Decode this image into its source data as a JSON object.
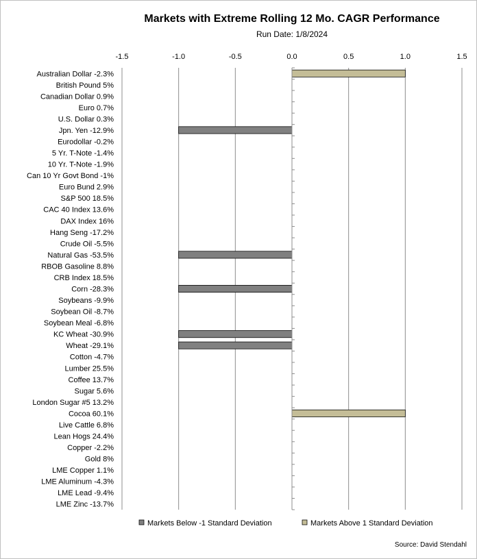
{
  "chart_data": {
    "type": "bar",
    "orientation": "horizontal",
    "title": "Markets with Extreme Rolling 12 Mo. CAGR Performance",
    "subtitle": "Run Date: 1/8/2024",
    "source": "Source: David Stendahl",
    "xlim": [
      -1.5,
      1.5
    ],
    "xticks": [
      "-1.5",
      "-1.0",
      "-0.5",
      "0.0",
      "0.5",
      "1.0",
      "1.5"
    ],
    "xtick_values": [
      -1.5,
      -1.0,
      -0.5,
      0.0,
      0.5,
      1.0,
      1.5
    ],
    "grid": "vertical",
    "legend_position": "bottom",
    "categories": [
      "Australian Dollar -2.3%",
      "British Pound 5%",
      "Canadian Dollar 0.9%",
      "Euro 0.7%",
      "U.S. Dollar 0.3%",
      "Jpn. Yen -12.9%",
      "Eurodollar -0.2%",
      "5 Yr. T-Note -1.4%",
      "10 Yr. T-Note -1.9%",
      "Can 10 Yr Govt Bond -1%",
      "Euro Bund 2.9%",
      "S&P 500 18.5%",
      "CAC 40 Index 13.6%",
      "DAX Index 16%",
      "Hang Seng -17.2%",
      "Crude Oil -5.5%",
      "Natural Gas -53.5%",
      "RBOB Gasoline 8.8%",
      "CRB Index 18.5%",
      "Corn -28.3%",
      "Soybeans -9.9%",
      "Soybean Oil -8.7%",
      "Soybean Meal -6.8%",
      "KC Wheat -30.9%",
      "Wheat -29.1%",
      "Cotton -4.7%",
      "Lumber 25.5%",
      "Coffee 13.7%",
      "Sugar 5.6%",
      "London Sugar #5 13.2%",
      "Cocoa 60.1%",
      "Live Cattle 6.8%",
      "Lean Hogs 24.4%",
      "Copper -2.2%",
      "Gold 8%",
      "LME Copper 1.1%",
      "LME Aluminum -4.3%",
      "LME Lead -9.4%",
      "LME Zinc -13.7%"
    ],
    "series": [
      {
        "name": "Markets Below -1 Standard Deviation",
        "color": "#808080",
        "values": [
          0,
          0,
          0,
          0,
          0,
          -1,
          0,
          0,
          0,
          0,
          0,
          0,
          0,
          0,
          0,
          0,
          -1,
          0,
          0,
          -1,
          0,
          0,
          0,
          -1,
          -1,
          0,
          0,
          0,
          0,
          0,
          0,
          0,
          0,
          0,
          0,
          0,
          0,
          0,
          0
        ]
      },
      {
        "name": "Markets Above 1 Standard Deviation",
        "color": "#c4bd97",
        "values": [
          1,
          0,
          0,
          0,
          0,
          0,
          0,
          0,
          0,
          0,
          0,
          0,
          0,
          0,
          0,
          0,
          0,
          0,
          0,
          0,
          0,
          0,
          0,
          0,
          0,
          0,
          0,
          0,
          0,
          0,
          1,
          0,
          0,
          0,
          0,
          0,
          0,
          0,
          0
        ]
      }
    ]
  }
}
